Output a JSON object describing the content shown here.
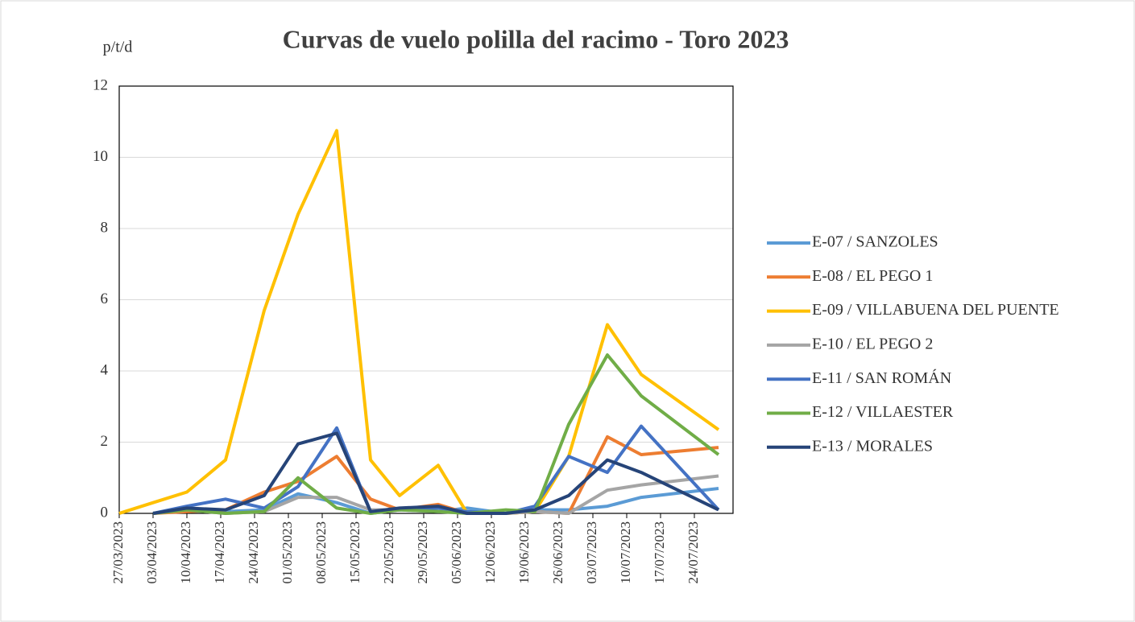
{
  "chart_data": {
    "type": "line",
    "title": "Curvas de vuelo polilla del racimo - Toro 2023",
    "y_label": "p/t/d",
    "x": [
      "2023-03-27",
      "2023-04-03",
      "2023-04-10",
      "2023-04-18",
      "2023-04-26",
      "2023-05-03",
      "2023-05-11",
      "2023-05-18",
      "2023-05-24",
      "2023-06-01",
      "2023-06-07",
      "2023-06-15",
      "2023-06-21",
      "2023-06-28",
      "2023-07-06",
      "2023-07-13",
      "2023-07-29"
    ],
    "series": [
      {
        "name": "E-07 / SANZOLES",
        "color": "#5b9bd5",
        "values": [
          null,
          0,
          0.1,
          0.05,
          0.1,
          0.55,
          0.3,
          0,
          0.1,
          0.05,
          0.15,
          0,
          0.1,
          0.1,
          0.2,
          0.45,
          0.7
        ]
      },
      {
        "name": "E-08 / EL PEGO 1",
        "color": "#ed7d31",
        "values": [
          null,
          0,
          0.05,
          0.1,
          0.6,
          0.9,
          1.6,
          0.4,
          0.1,
          0.25,
          0,
          0,
          0.05,
          0,
          2.15,
          1.65,
          1.85
        ]
      },
      {
        "name": "E-09 / VILLABUENA DEL PUENTE",
        "color": "#ffc000",
        "values": [
          0,
          0.3,
          0.6,
          1.5,
          5.7,
          8.4,
          10.75,
          1.5,
          0.5,
          1.35,
          0,
          0,
          0.05,
          1.6,
          5.3,
          3.9,
          2.35
        ]
      },
      {
        "name": "E-10 / EL PEGO 2",
        "color": "#a5a5a5",
        "values": [
          null,
          0,
          0.1,
          0,
          0.05,
          0.45,
          0.45,
          0.1,
          0.1,
          0.15,
          0,
          0,
          0.05,
          0,
          0.65,
          0.8,
          1.05
        ]
      },
      {
        "name": "E-11 / SAN ROMÁN",
        "color": "#4472c4",
        "values": [
          null,
          0,
          0.2,
          0.4,
          0.15,
          0.75,
          2.4,
          0.05,
          0.1,
          0.15,
          0.05,
          0,
          0.2,
          1.6,
          1.15,
          2.45,
          0.1
        ]
      },
      {
        "name": "E-12 / VILLAESTER",
        "color": "#70ad47",
        "values": [
          null,
          0,
          0.1,
          0,
          0.05,
          1.0,
          0.15,
          0,
          0.1,
          0.05,
          0,
          0.1,
          0.05,
          2.5,
          4.45,
          3.3,
          1.65
        ]
      },
      {
        "name": "E-13 / MORALES",
        "color": "#264478",
        "values": [
          null,
          0,
          0.15,
          0.1,
          0.5,
          1.95,
          2.25,
          0.05,
          0.15,
          0.2,
          0,
          0,
          0.1,
          0.5,
          1.5,
          1.15,
          0.1
        ]
      }
    ],
    "xlim": [
      "2023-03-27",
      "2023-08-01"
    ],
    "xticks": [
      {
        "value": "2023-03-27",
        "label": "27/03/2023"
      },
      {
        "value": "2023-04-03",
        "label": "03/04/2023"
      },
      {
        "value": "2023-04-10",
        "label": "10/04/2023"
      },
      {
        "value": "2023-04-17",
        "label": "17/04/2023"
      },
      {
        "value": "2023-04-24",
        "label": "24/04/2023"
      },
      {
        "value": "2023-05-01",
        "label": "01/05/2023"
      },
      {
        "value": "2023-05-08",
        "label": "08/05/2023"
      },
      {
        "value": "2023-05-15",
        "label": "15/05/2023"
      },
      {
        "value": "2023-05-22",
        "label": "22/05/2023"
      },
      {
        "value": "2023-05-29",
        "label": "29/05/2023"
      },
      {
        "value": "2023-06-05",
        "label": "05/06/2023"
      },
      {
        "value": "2023-06-12",
        "label": "12/06/2023"
      },
      {
        "value": "2023-06-19",
        "label": "19/06/2023"
      },
      {
        "value": "2023-06-26",
        "label": "26/06/2023"
      },
      {
        "value": "2023-07-03",
        "label": "03/07/2023"
      },
      {
        "value": "2023-07-10",
        "label": "10/07/2023"
      },
      {
        "value": "2023-07-17",
        "label": "17/07/2023"
      },
      {
        "value": "2023-07-24",
        "label": "24/07/2023"
      }
    ],
    "ylim": [
      0,
      12
    ],
    "yticks": [
      0,
      2,
      4,
      6,
      8,
      10,
      12
    ],
    "grid": true,
    "legend": "right"
  }
}
